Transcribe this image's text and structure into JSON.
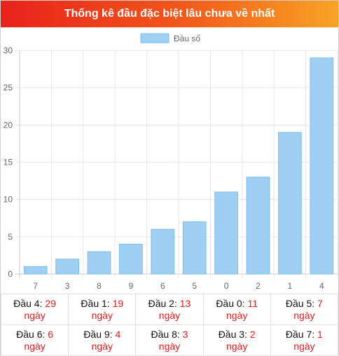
{
  "header": {
    "title": "Thống kê đầu đặc biệt lâu chưa về nhất"
  },
  "chart_data": {
    "type": "bar",
    "legend": "Đầu số",
    "legend_position": "top",
    "categories": [
      "7",
      "3",
      "8",
      "9",
      "6",
      "5",
      "0",
      "2",
      "1",
      "4"
    ],
    "values": [
      1,
      2,
      3,
      4,
      6,
      7,
      11,
      13,
      19,
      29
    ],
    "ylim": [
      0,
      30
    ],
    "yticks": [
      0,
      5,
      10,
      15,
      20,
      25,
      30
    ],
    "grid": true,
    "bar_color": "#9fd0f3",
    "bar_border": "#7bbcec"
  },
  "table": {
    "rows": [
      [
        {
          "label": "Đầu 4:",
          "value": "29",
          "unit": "ngày"
        },
        {
          "label": "Đầu 1:",
          "value": "19",
          "unit": "ngày"
        },
        {
          "label": "Đầu 2:",
          "value": "13",
          "unit": "ngày"
        },
        {
          "label": "Đầu 0:",
          "value": "11",
          "unit": "ngày"
        },
        {
          "label": "Đầu 5:",
          "value": "7",
          "unit": "ngày"
        }
      ],
      [
        {
          "label": "Đầu 6:",
          "value": "6",
          "unit": "ngày"
        },
        {
          "label": "Đầu 9:",
          "value": "4",
          "unit": "ngày"
        },
        {
          "label": "Đầu 8:",
          "value": "3",
          "unit": "ngày"
        },
        {
          "label": "Đầu 3:",
          "value": "2",
          "unit": "ngày"
        },
        {
          "label": "Đầu 7:",
          "value": "1",
          "unit": "ngày"
        }
      ]
    ]
  }
}
